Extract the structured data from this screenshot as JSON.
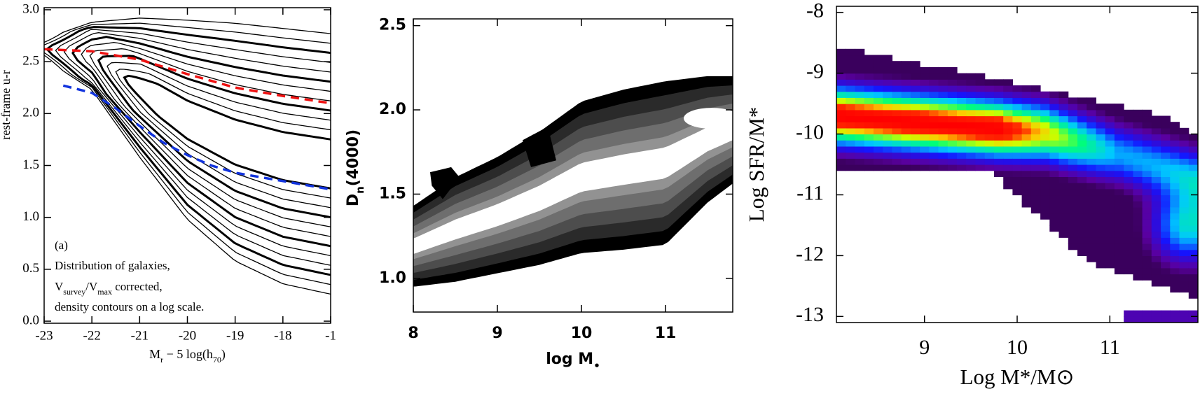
{
  "chart_data": [
    {
      "type": "line",
      "y_label": "rest-frame u-r",
      "x_label": [
        {
          "text": "M"
        },
        {
          "text": "r",
          "sub": true
        },
        {
          "text": " − 5 log(h"
        },
        {
          "text": "70",
          "sub": true
        },
        {
          "text": ")"
        }
      ],
      "xlim": [
        -23,
        -17
      ],
      "xticks": [
        -23,
        -22,
        -21,
        -20,
        -19,
        -18,
        {
          "value": -17,
          "label": "-1"
        }
      ],
      "ylim": [
        -0.02,
        3.02
      ],
      "yticks": [
        {
          "value": 0,
          "label": "0.0"
        },
        {
          "value": 0.5,
          "label": "0.5"
        },
        {
          "value": 1,
          "label": "1.0"
        },
        {
          "value": 1.5,
          "label": "1.5"
        },
        {
          "value": 2,
          "label": "2.0"
        },
        {
          "value": 2.5,
          "label": "2.5"
        },
        {
          "value": 3,
          "label": "3.0"
        }
      ],
      "annotations": [
        "(a)",
        "Distribution of galaxies,",
        [
          {
            "text": "V"
          },
          {
            "text": "survey",
            "sub": true
          },
          {
            "text": "/V"
          },
          {
            "text": "max",
            "sub": true
          },
          {
            "text": " corrected,"
          }
        ],
        "density contours on a log scale."
      ],
      "series": [
        {
          "color": "#ee1111",
          "x": [
            -23,
            -22,
            -21,
            -20,
            -19,
            -18,
            -17
          ],
          "values": [
            2.62,
            2.6,
            2.52,
            2.38,
            2.25,
            2.17,
            2.1
          ]
        },
        {
          "color": "#1133dd",
          "x": [
            -22.6,
            -22,
            -21.5,
            -21,
            -20.5,
            -20,
            -19.5,
            -19,
            -18,
            -17
          ],
          "values": [
            2.27,
            2.2,
            2.05,
            1.88,
            1.72,
            1.6,
            1.5,
            1.43,
            1.35,
            1.27
          ]
        }
      ]
    },
    {
      "type": "contour",
      "y_label": [
        {
          "text": "D"
        },
        {
          "text": "n",
          "sub": true
        },
        {
          "text": "(4000)"
        }
      ],
      "x_label": [
        {
          "text": "log M"
        },
        {
          "text": "•",
          "sub": true
        }
      ],
      "xlim": [
        8,
        11.8
      ],
      "xticks": [
        8,
        9,
        10,
        11
      ],
      "ylim": [
        0.8,
        2.54
      ],
      "yticks": [
        {
          "value": 1,
          "label": "1.0"
        },
        {
          "value": 1.5,
          "label": "1.5"
        },
        {
          "value": 2,
          "label": "2.0"
        },
        {
          "value": 2.5,
          "label": "2.5"
        }
      ]
    },
    {
      "type": "heatmap",
      "y_label": "Log SFR/M*",
      "x_label": "Log M*/M⊙",
      "xlim": [
        8.05,
        11.95
      ],
      "xticks": [
        9,
        10,
        11
      ],
      "ylim": [
        -13.1,
        -7.9
      ],
      "yticks": [
        -13,
        -12,
        -11,
        -10,
        -9,
        -8
      ]
    }
  ]
}
